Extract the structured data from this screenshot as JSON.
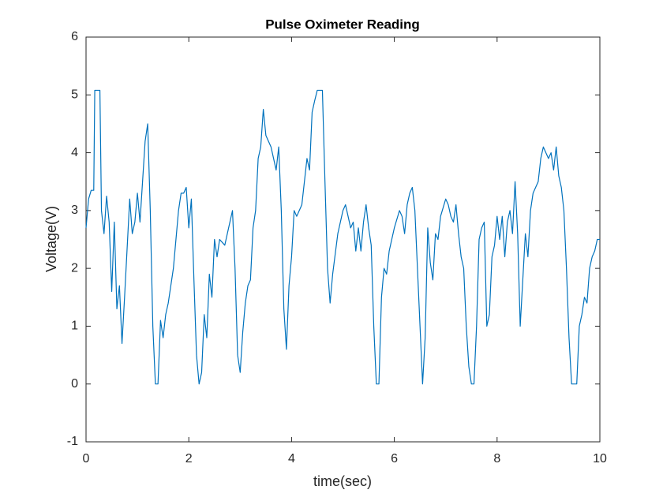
{
  "chart_data": {
    "type": "line",
    "title": "Pulse Oximeter Reading",
    "x_label": "time(sec)",
    "y_label": "Voltage(V)",
    "color": "#0072bd",
    "x": [
      0,
      0.05,
      0.1,
      0.15,
      0.17,
      0.27,
      0.3,
      0.35,
      0.4,
      0.45,
      0.5,
      0.55,
      0.6,
      0.65,
      0.7,
      0.75,
      0.85,
      0.9,
      0.95,
      1.0,
      1.05,
      1.1,
      1.15,
      1.2,
      1.25,
      1.3,
      1.35,
      1.4,
      1.45,
      1.5,
      1.55,
      1.6,
      1.7,
      1.8,
      1.85,
      1.9,
      1.95,
      2.0,
      2.05,
      2.1,
      2.15,
      2.2,
      2.25,
      2.3,
      2.35,
      2.4,
      2.45,
      2.5,
      2.55,
      2.6,
      2.7,
      2.75,
      2.85,
      2.9,
      2.95,
      3.0,
      3.05,
      3.1,
      3.15,
      3.2,
      3.25,
      3.3,
      3.35,
      3.4,
      3.45,
      3.5,
      3.6,
      3.7,
      3.75,
      3.8,
      3.85,
      3.9,
      3.95,
      4.0,
      4.05,
      4.1,
      4.2,
      4.25,
      4.3,
      4.35,
      4.4,
      4.45,
      4.5,
      4.6,
      4.65,
      4.7,
      4.75,
      4.8,
      4.9,
      5.0,
      5.05,
      5.1,
      5.15,
      5.2,
      5.25,
      5.3,
      5.35,
      5.4,
      5.45,
      5.5,
      5.55,
      5.6,
      5.65,
      5.7,
      5.75,
      5.8,
      5.85,
      5.9,
      5.95,
      6.0,
      6.1,
      6.15,
      6.2,
      6.25,
      6.3,
      6.35,
      6.4,
      6.45,
      6.5,
      6.55,
      6.6,
      6.65,
      6.7,
      6.75,
      6.8,
      6.85,
      6.9,
      7.0,
      7.05,
      7.1,
      7.15,
      7.2,
      7.25,
      7.3,
      7.35,
      7.4,
      7.45,
      7.5,
      7.55,
      7.6,
      7.65,
      7.7,
      7.75,
      7.8,
      7.85,
      7.9,
      7.95,
      8.0,
      8.05,
      8.1,
      8.15,
      8.2,
      8.25,
      8.3,
      8.35,
      8.4,
      8.45,
      8.5,
      8.55,
      8.6,
      8.65,
      8.7,
      8.75,
      8.8,
      8.85,
      8.9,
      8.95,
      9.0,
      9.05,
      9.1,
      9.15,
      9.2,
      9.25,
      9.3,
      9.35,
      9.4,
      9.45,
      9.5,
      9.55,
      9.6,
      9.65,
      9.7,
      9.75,
      9.8,
      9.85,
      9.9,
      9.95,
      10.0
    ],
    "values": [
      2.7,
      3.2,
      3.35,
      3.35,
      5.08,
      5.08,
      3.0,
      2.6,
      3.25,
      2.8,
      1.6,
      2.8,
      1.3,
      1.7,
      0.7,
      1.5,
      3.2,
      2.6,
      2.8,
      3.3,
      2.8,
      3.5,
      4.2,
      4.5,
      3.0,
      1.0,
      0.0,
      0.0,
      1.1,
      0.8,
      1.2,
      1.4,
      2.0,
      3.0,
      3.3,
      3.3,
      3.4,
      2.7,
      3.2,
      1.8,
      0.5,
      0.0,
      0.2,
      1.2,
      0.8,
      1.9,
      1.5,
      2.5,
      2.2,
      2.5,
      2.4,
      2.6,
      3.0,
      2.0,
      0.5,
      0.2,
      0.9,
      1.4,
      1.7,
      1.8,
      2.7,
      3.0,
      3.9,
      4.1,
      4.75,
      4.3,
      4.1,
      3.7,
      4.1,
      3.0,
      1.3,
      0.6,
      1.7,
      2.2,
      3.0,
      2.9,
      3.1,
      3.5,
      3.9,
      3.7,
      4.7,
      4.9,
      5.08,
      5.08,
      3.5,
      2.0,
      1.4,
      1.9,
      2.6,
      3.0,
      3.1,
      2.9,
      2.7,
      2.8,
      2.3,
      2.7,
      2.3,
      2.8,
      3.1,
      2.7,
      2.4,
      1.0,
      0.0,
      0.0,
      1.5,
      2.0,
      1.9,
      2.3,
      2.5,
      2.7,
      3.0,
      2.9,
      2.6,
      3.1,
      3.3,
      3.4,
      3.0,
      2.0,
      1.0,
      0.0,
      0.8,
      2.7,
      2.1,
      1.8,
      2.6,
      2.5,
      2.9,
      3.2,
      3.1,
      2.9,
      2.8,
      3.1,
      2.6,
      2.2,
      2.0,
      1.0,
      0.3,
      0.0,
      0.0,
      1.0,
      2.5,
      2.7,
      2.8,
      1.0,
      1.2,
      2.2,
      2.4,
      2.9,
      2.5,
      2.9,
      2.2,
      2.8,
      3.0,
      2.6,
      3.5,
      2.6,
      1.0,
      1.8,
      2.6,
      2.2,
      3.0,
      3.3,
      3.4,
      3.5,
      3.9,
      4.1,
      4.0,
      3.9,
      4.0,
      3.7,
      4.1,
      3.6,
      3.4,
      3.0,
      2.0,
      0.8,
      0.0,
      0.0,
      0.0,
      1.0,
      1.2,
      1.5,
      1.4,
      2.0,
      2.2,
      2.3,
      2.5,
      2.5
    ],
    "xlim": [
      0,
      10
    ],
    "xticks": [
      0,
      2,
      4,
      6,
      8,
      10
    ],
    "ylim": [
      -1,
      6
    ],
    "yticks": [
      -1,
      0,
      1,
      2,
      3,
      4,
      5,
      6
    ]
  }
}
